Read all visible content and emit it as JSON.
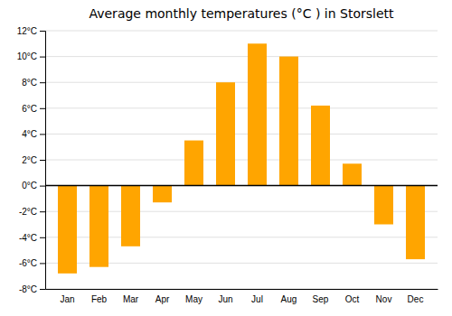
{
  "chart_data": {
    "type": "bar",
    "title": "Average monthly temperatures (°C ) in Storslett",
    "categories": [
      "Jan",
      "Feb",
      "Mar",
      "Apr",
      "May",
      "Jun",
      "Jul",
      "Aug",
      "Sep",
      "Oct",
      "Nov",
      "Dec"
    ],
    "values": [
      -6.8,
      -6.3,
      -4.7,
      -1.3,
      3.5,
      8.0,
      11.0,
      10.0,
      6.2,
      1.7,
      -3.0,
      -5.7
    ],
    "color": "#FFA500",
    "ylim": [
      -8,
      12
    ],
    "yticks": [
      {
        "value": -8,
        "label": "-8°C"
      },
      {
        "value": -6,
        "label": "-6°C"
      },
      {
        "value": -4,
        "label": "-4°C"
      },
      {
        "value": -2,
        "label": "-2°C"
      },
      {
        "value": 0,
        "label": "0°C"
      },
      {
        "value": 2,
        "label": "2°C"
      },
      {
        "value": 4,
        "label": "4°C"
      },
      {
        "value": 6,
        "label": "6°C"
      },
      {
        "value": 8,
        "label": "8°C"
      },
      {
        "value": 10,
        "label": "10°C"
      },
      {
        "value": 12,
        "label": "12°C"
      }
    ],
    "grid": true
  }
}
